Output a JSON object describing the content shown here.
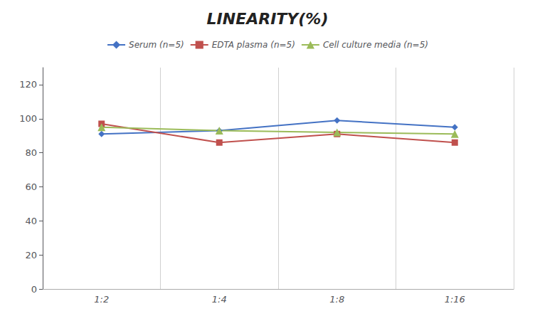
{
  "chart_data": {
    "type": "line",
    "title": "LINEARITY(%)",
    "categories": [
      "1:2",
      "1:4",
      "1:8",
      "1:16"
    ],
    "series": [
      {
        "name": "Serum (n=5)",
        "color": "#4472C4",
        "marker": "diamond",
        "values": [
          91,
          93,
          99,
          95
        ]
      },
      {
        "name": "EDTA plasma (n=5)",
        "color": "#C0504D",
        "marker": "square",
        "values": [
          97,
          86,
          91,
          86
        ]
      },
      {
        "name": "Cell culture media (n=5)",
        "color": "#9BBB59",
        "marker": "triangle",
        "values": [
          95,
          93,
          92,
          91
        ]
      }
    ],
    "ylim": [
      0,
      130
    ],
    "yticks": [
      0,
      20,
      40,
      60,
      80,
      100,
      120
    ],
    "grid": "x",
    "legend": "top"
  }
}
